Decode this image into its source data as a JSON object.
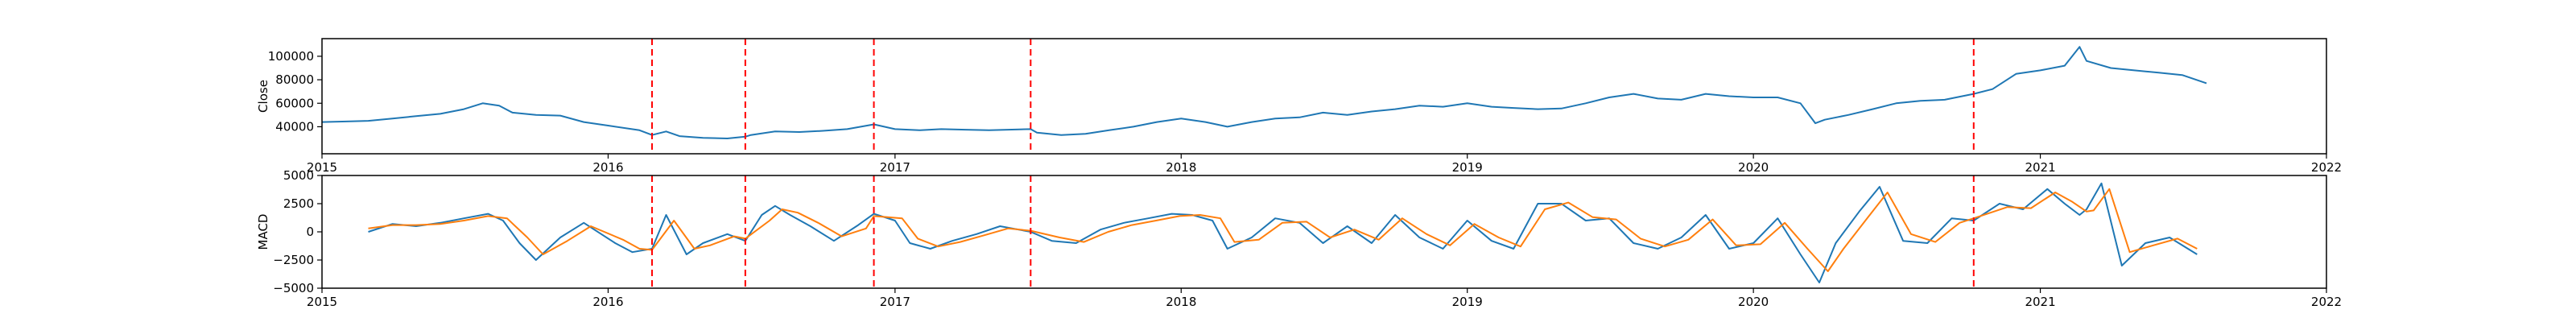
{
  "chart_data": [
    {
      "type": "line",
      "ylabel": "Close",
      "xlim": [
        "2015-01-01",
        "2022-01-01"
      ],
      "ylim": [
        17000,
        115000
      ],
      "x_ticks": [
        "2015",
        "2016",
        "2017",
        "2018",
        "2019",
        "2020",
        "2021",
        "2022"
      ],
      "y_ticks": [
        40000,
        60000,
        80000,
        100000
      ],
      "grid": false,
      "colors": {
        "close": "#1f77b4",
        "vline": "#ff0000"
      },
      "event_dates": [
        "2016-02-26",
        "2016-06-24",
        "2016-12-05",
        "2017-06-23",
        "2020-10-08"
      ],
      "series": [
        {
          "x": [
            "2015-01-01",
            "2015-02-01",
            "2015-03-01",
            "2015-04-01",
            "2015-05-01",
            "2015-06-01",
            "2015-07-01",
            "2015-07-25",
            "2015-08-15",
            "2015-09-01",
            "2015-10-01",
            "2015-11-01",
            "2015-12-01",
            "2016-01-01",
            "2016-02-10",
            "2016-02-26",
            "2016-03-15",
            "2016-04-01",
            "2016-05-01",
            "2016-06-01",
            "2016-06-24",
            "2016-07-01",
            "2016-08-01",
            "2016-09-01",
            "2016-10-01",
            "2016-11-01",
            "2016-12-05",
            "2017-01-01",
            "2017-02-01",
            "2017-03-01",
            "2017-04-01",
            "2017-05-01",
            "2017-06-23",
            "2017-07-01",
            "2017-08-01",
            "2017-09-01",
            "2017-10-01",
            "2017-11-01",
            "2017-12-01",
            "2018-01-01",
            "2018-02-01",
            "2018-03-01",
            "2018-04-01",
            "2018-05-01",
            "2018-06-01",
            "2018-07-01",
            "2018-08-01",
            "2018-09-01",
            "2018-10-01",
            "2018-11-01",
            "2018-12-01",
            "2019-01-01",
            "2019-02-01",
            "2019-03-01",
            "2019-04-01",
            "2019-05-01",
            "2019-06-01",
            "2019-07-01",
            "2019-08-01",
            "2019-09-01",
            "2019-10-01",
            "2019-11-01",
            "2019-12-01",
            "2020-01-01",
            "2020-02-01",
            "2020-03-01",
            "2020-03-20",
            "2020-04-01",
            "2020-05-01",
            "2020-06-01",
            "2020-07-01",
            "2020-08-01",
            "2020-09-01",
            "2020-10-08",
            "2020-11-01",
            "2020-12-01",
            "2021-01-01",
            "2021-02-01",
            "2021-02-20",
            "2021-03-01",
            "2021-04-01",
            "2021-05-01",
            "2021-06-01",
            "2021-07-01",
            "2021-08-01"
          ],
          "values": [
            44000,
            44500,
            45000,
            47000,
            49000,
            51000,
            55000,
            60000,
            58000,
            52000,
            50000,
            49500,
            44000,
            41000,
            37000,
            33000,
            36000,
            32000,
            30500,
            30000,
            31500,
            33000,
            36000,
            35500,
            36500,
            38000,
            42000,
            38000,
            37000,
            38000,
            37500,
            37000,
            38000,
            35000,
            33000,
            34000,
            37000,
            40000,
            44000,
            47000,
            44000,
            40000,
            44000,
            47000,
            48000,
            52000,
            50000,
            53000,
            55000,
            58000,
            57000,
            60000,
            57000,
            56000,
            55000,
            55500,
            60000,
            65000,
            68000,
            64000,
            63000,
            68000,
            66000,
            65000,
            65000,
            60000,
            43000,
            46000,
            50000,
            55000,
            60000,
            62000,
            63000,
            68000,
            72000,
            85000,
            88000,
            92000,
            108000,
            96000,
            90000,
            88000,
            86000,
            84000,
            77000
          ]
        }
      ]
    },
    {
      "type": "line",
      "ylabel": "MACD",
      "xlim": [
        "2015-01-01",
        "2022-01-01"
      ],
      "ylim": [
        -5000,
        5000
      ],
      "x_ticks": [
        "2015",
        "2016",
        "2017",
        "2018",
        "2019",
        "2020",
        "2021",
        "2022"
      ],
      "y_ticks": [
        -5000,
        -2500,
        0,
        2500,
        5000
      ],
      "grid": false,
      "colors": {
        "macd": "#1f77b4",
        "signal": "#ff7f0e",
        "vline": "#ff0000"
      },
      "event_dates": [
        "2016-02-26",
        "2016-06-24",
        "2016-12-05",
        "2017-06-23",
        "2020-10-08"
      ],
      "series": [
        {
          "x": [
            "2015-03-01",
            "2015-04-01",
            "2015-05-01",
            "2015-06-01",
            "2015-07-01",
            "2015-08-01",
            "2015-08-20",
            "2015-09-10",
            "2015-10-01",
            "2015-11-01",
            "2015-12-01",
            "2016-01-10",
            "2016-02-01",
            "2016-02-26",
            "2016-03-15",
            "2016-04-10",
            "2016-05-01",
            "2016-06-01",
            "2016-06-24",
            "2016-07-15",
            "2016-08-01",
            "2016-08-20",
            "2016-09-15",
            "2016-10-15",
            "2016-11-15",
            "2016-12-05",
            "2017-01-01",
            "2017-01-20",
            "2017-02-15",
            "2017-03-15",
            "2017-04-15",
            "2017-05-15",
            "2017-06-23",
            "2017-07-20",
            "2017-08-20",
            "2017-09-20",
            "2017-10-20",
            "2017-11-20",
            "2017-12-20",
            "2018-01-15",
            "2018-02-10",
            "2018-03-01",
            "2018-04-01",
            "2018-05-01",
            "2018-06-01",
            "2018-07-01",
            "2018-08-01",
            "2018-09-01",
            "2018-10-01",
            "2018-11-01",
            "2018-12-01",
            "2019-01-01",
            "2019-02-01",
            "2019-03-01",
            "2019-04-01",
            "2019-05-01",
            "2019-06-01",
            "2019-07-01",
            "2019-08-01",
            "2019-09-01",
            "2019-10-01",
            "2019-11-01",
            "2019-12-01",
            "2020-01-01",
            "2020-02-01",
            "2020-03-01",
            "2020-03-25",
            "2020-04-15",
            "2020-05-15",
            "2020-06-10",
            "2020-07-10",
            "2020-08-10",
            "2020-09-10",
            "2020-10-08",
            "2020-11-10",
            "2020-12-10",
            "2021-01-10",
            "2021-02-01",
            "2021-02-20",
            "2021-03-01",
            "2021-03-20",
            "2021-04-15",
            "2021-05-15",
            "2021-06-15",
            "2021-07-20"
          ],
          "name": "",
          "values": [
            0,
            700,
            500,
            800,
            1200,
            1600,
            1000,
            -1000,
            -2500,
            -500,
            800,
            -1000,
            -1800,
            -1500,
            1500,
            -2000,
            -1000,
            -200,
            -800,
            1500,
            2300,
            1500,
            500,
            -800,
            600,
            1600,
            1000,
            -1000,
            -1500,
            -800,
            -200,
            500,
            0,
            -800,
            -1000,
            200,
            800,
            1200,
            1600,
            1500,
            1000,
            -1500,
            -500,
            1200,
            800,
            -1000,
            500,
            -1000,
            1500,
            -500,
            -1500,
            1000,
            -800,
            -1500,
            2500,
            2500,
            1000,
            1200,
            -1000,
            -1500,
            -500,
            1500,
            -1500,
            -1000,
            1200,
            -2000,
            -4500,
            -1000,
            1800,
            4000,
            -800,
            -1000,
            1200,
            1000,
            2500,
            2000,
            3800,
            2500,
            1500,
            2000,
            4300,
            -3000,
            -1000,
            -500,
            -2000
          ]
        },
        {
          "x": [
            "2015-03-01",
            "2015-04-01",
            "2015-05-01",
            "2015-06-01",
            "2015-07-01",
            "2015-08-01",
            "2015-08-25",
            "2015-09-20",
            "2015-10-10",
            "2015-11-10",
            "2015-12-10",
            "2016-01-20",
            "2016-02-10",
            "2016-02-26",
            "2016-03-25",
            "2016-04-20",
            "2016-05-10",
            "2016-06-10",
            "2016-06-24",
            "2016-07-25",
            "2016-08-10",
            "2016-08-30",
            "2016-09-25",
            "2016-10-25",
            "2016-11-25",
            "2016-12-05",
            "2017-01-10",
            "2017-01-30",
            "2017-02-25",
            "2017-03-25",
            "2017-04-25",
            "2017-05-25",
            "2017-06-23",
            "2017-07-30",
            "2017-08-30",
            "2017-09-30",
            "2017-10-30",
            "2017-11-30",
            "2017-12-30",
            "2018-01-25",
            "2018-02-20",
            "2018-03-10",
            "2018-04-10",
            "2018-05-10",
            "2018-06-10",
            "2018-07-10",
            "2018-08-10",
            "2018-09-10",
            "2018-10-10",
            "2018-11-10",
            "2018-12-10",
            "2019-01-10",
            "2019-02-10",
            "2019-03-10",
            "2019-04-10",
            "2019-05-10",
            "2019-06-10",
            "2019-07-10",
            "2019-08-10",
            "2019-09-10",
            "2019-10-10",
            "2019-11-10",
            "2019-12-10",
            "2020-01-10",
            "2020-02-10",
            "2020-03-10",
            "2020-04-05",
            "2020-04-25",
            "2020-05-25",
            "2020-06-20",
            "2020-07-20",
            "2020-08-20",
            "2020-09-20",
            "2020-10-08",
            "2020-11-20",
            "2020-12-20",
            "2021-01-20",
            "2021-02-10",
            "2021-03-01",
            "2021-03-10",
            "2021-03-30",
            "2021-04-25",
            "2021-05-25",
            "2021-06-25",
            "2021-07-20"
          ],
          "name": "",
          "values": [
            300,
            600,
            600,
            700,
            1000,
            1400,
            1200,
            -500,
            -2000,
            -800,
            500,
            -700,
            -1500,
            -1600,
            1000,
            -1500,
            -1200,
            -400,
            -600,
            1000,
            2000,
            1700,
            800,
            -400,
            300,
            1400,
            1200,
            -600,
            -1300,
            -900,
            -300,
            300,
            100,
            -500,
            -900,
            0,
            600,
            1000,
            1400,
            1500,
            1200,
            -900,
            -700,
            800,
            900,
            -500,
            200,
            -700,
            1200,
            -200,
            -1200,
            700,
            -500,
            -1300,
            2000,
            2600,
            1300,
            1100,
            -600,
            -1300,
            -700,
            1100,
            -1200,
            -1100,
            800,
            -1500,
            -3500,
            -1500,
            1200,
            3500,
            -200,
            -900,
            800,
            1200,
            2200,
            2100,
            3500,
            2700,
            1800,
            1900,
            3800,
            -1800,
            -1200,
            -600,
            -1500
          ]
        }
      ]
    }
  ]
}
